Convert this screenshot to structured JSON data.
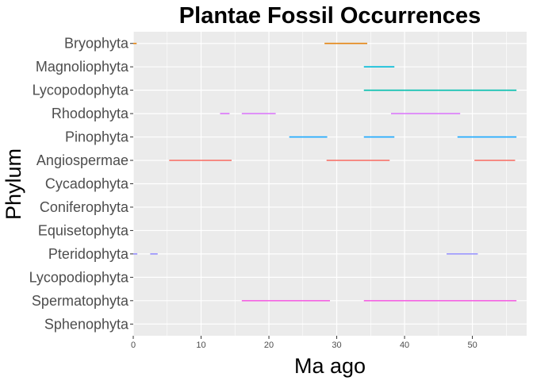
{
  "chart_data": {
    "type": "range-segments",
    "title": "Plantae Fossil Occurrences",
    "xlabel": "Ma ago",
    "ylabel": "Phylum",
    "xlim": [
      0,
      58
    ],
    "x_ticks": [
      0,
      10,
      20,
      30,
      40,
      50
    ],
    "grid": true,
    "legend": "none",
    "categories": [
      "Bryophyta",
      "Magnoliophyta",
      "Lycopodophyta",
      "Rhodophyta",
      "Pinophyta",
      "Angiospermae",
      "Cycadophyta",
      "Coniferophyta",
      "Equisetophyta",
      "Pteridophyta",
      "Lycopodiophyta",
      "Spermatophyta",
      "Sphenophyta"
    ],
    "series": [
      {
        "category": "Bryophyta",
        "color": "#E68613",
        "segments": [
          [
            0,
            0.5
          ],
          [
            28.2,
            34.5
          ]
        ]
      },
      {
        "category": "Magnoliophyta",
        "color": "#00BCD8",
        "segments": [
          [
            34.0,
            38.5
          ]
        ]
      },
      {
        "category": "Lycopodophyta",
        "color": "#00BFAE",
        "segments": [
          [
            34.0,
            56.5
          ]
        ]
      },
      {
        "category": "Rhodophyta",
        "color": "#DB72FB",
        "segments": [
          [
            12.8,
            14.2
          ],
          [
            16.0,
            21.0
          ],
          [
            38.0,
            48.2
          ]
        ]
      },
      {
        "category": "Pinophyta",
        "color": "#19A9FF",
        "segments": [
          [
            23.0,
            28.6
          ],
          [
            34.0,
            38.5
          ],
          [
            47.8,
            56.5
          ]
        ]
      },
      {
        "category": "Angiospermae",
        "color": "#F8766D",
        "segments": [
          [
            5.3,
            14.5
          ],
          [
            28.5,
            37.8
          ],
          [
            50.3,
            56.3
          ]
        ]
      },
      {
        "category": "Pteridophyta",
        "color": "#9590FF",
        "segments": [
          [
            0,
            0.6
          ],
          [
            2.5,
            3.6
          ],
          [
            46.2,
            50.8
          ]
        ]
      },
      {
        "category": "Spermatophyta",
        "color": "#F564E3",
        "segments": [
          [
            16.0,
            29.0
          ],
          [
            34.0,
            56.5
          ]
        ]
      }
    ]
  }
}
